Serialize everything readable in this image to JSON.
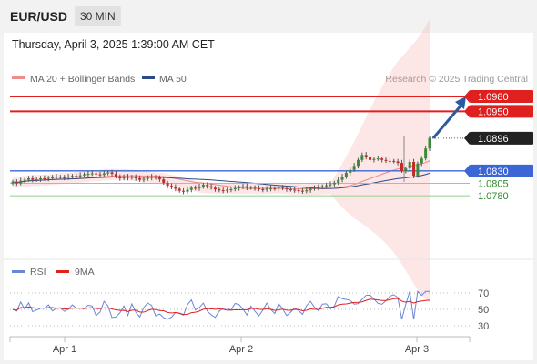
{
  "header": {
    "symbol": "EUR/USD",
    "timeframe": "30 MIN"
  },
  "datetime": "Thursday, April 3, 2025 1:39:00 AM CET",
  "legend": {
    "bb_label": "MA 20 + Bollinger Bands",
    "ma50_label": "MA 50",
    "source": "Research © 2025 Trading Central"
  },
  "rsi_legend": {
    "rsi_label": "RSI",
    "ma_label": "9MA"
  },
  "colors": {
    "resistance": "#e01f1f",
    "pivot": "#3a66d6",
    "support": "#2e9e2e",
    "current": "#222222",
    "arrow": "#2c5aa0",
    "bb": "#f08c8c",
    "ma50": "#2c4a8a",
    "rsi": "#6a86d6",
    "rsi_ma": "#e01f1f"
  },
  "chart_data": [
    {
      "type": "candlestick",
      "title": "EUR/USD",
      "timeframe": "30 MIN",
      "x_ticks": [
        "Apr 1",
        "Apr 2",
        "Apr 3"
      ],
      "ylim": [
        1.0765,
        1.0995
      ],
      "levels": [
        {
          "value": 1.098,
          "label": "1.0980",
          "kind": "resistance"
        },
        {
          "value": 1.095,
          "label": "1.0950",
          "kind": "resistance"
        },
        {
          "value": 1.0896,
          "label": "1.0896",
          "kind": "current"
        },
        {
          "value": 1.083,
          "label": "1.0830",
          "kind": "pivot"
        },
        {
          "value": 1.0805,
          "label": "1.0805",
          "kind": "support"
        },
        {
          "value": 1.078,
          "label": "1.0780",
          "kind": "support"
        }
      ],
      "closes": [
        1.0808,
        1.0805,
        1.081,
        1.0812,
        1.0815,
        1.0812,
        1.0813,
        1.0815,
        1.0814,
        1.0816,
        1.0817,
        1.0818,
        1.0817,
        1.0816,
        1.0818,
        1.082,
        1.0819,
        1.0821,
        1.0823,
        1.0824,
        1.0825,
        1.0823,
        1.0822,
        1.0825,
        1.0827,
        1.0824,
        1.0819,
        1.0815,
        1.0818,
        1.0816,
        1.0818,
        1.0815,
        1.0812,
        1.0814,
        1.0816,
        1.0818,
        1.0816,
        1.0813,
        1.0806,
        1.08,
        1.0797,
        1.0794,
        1.079,
        1.0788,
        1.0792,
        1.0796,
        1.0795,
        1.0798,
        1.0802,
        1.0799,
        1.0796,
        1.0793,
        1.0791,
        1.079,
        1.0792,
        1.0793,
        1.0795,
        1.0797,
        1.0799,
        1.0796,
        1.0796,
        1.0795,
        1.0793,
        1.0792,
        1.0794,
        1.0795,
        1.0794,
        1.0796,
        1.0795,
        1.0793,
        1.0792,
        1.0791,
        1.079,
        1.0789,
        1.0791,
        1.0794,
        1.0796,
        1.0797,
        1.0799,
        1.0801,
        1.0803,
        1.0806,
        1.0812,
        1.0818,
        1.0826,
        1.0832,
        1.084,
        1.0852,
        1.0862,
        1.0858,
        1.0852,
        1.0854,
        1.0855,
        1.0852,
        1.085,
        1.085,
        1.0849,
        1.0846,
        1.083,
        1.0835,
        1.0848,
        1.082,
        1.0845,
        1.0855,
        1.0875,
        1.0896
      ],
      "ma20_bollinger": {
        "mid_start": 1.0815,
        "mid_end": 1.0825,
        "band_low": 1.0788,
        "band_high": 1.0875
      },
      "ma50": {
        "start": 1.0824,
        "end": 1.0822
      },
      "projection": {
        "from": 1.0896,
        "to": 1.098,
        "direction": "up"
      }
    },
    {
      "type": "line",
      "title": "RSI",
      "ylim": [
        20,
        80
      ],
      "y_ticks": [
        70,
        50,
        30
      ],
      "series": [
        {
          "name": "RSI"
        },
        {
          "name": "9MA"
        }
      ]
    }
  ]
}
